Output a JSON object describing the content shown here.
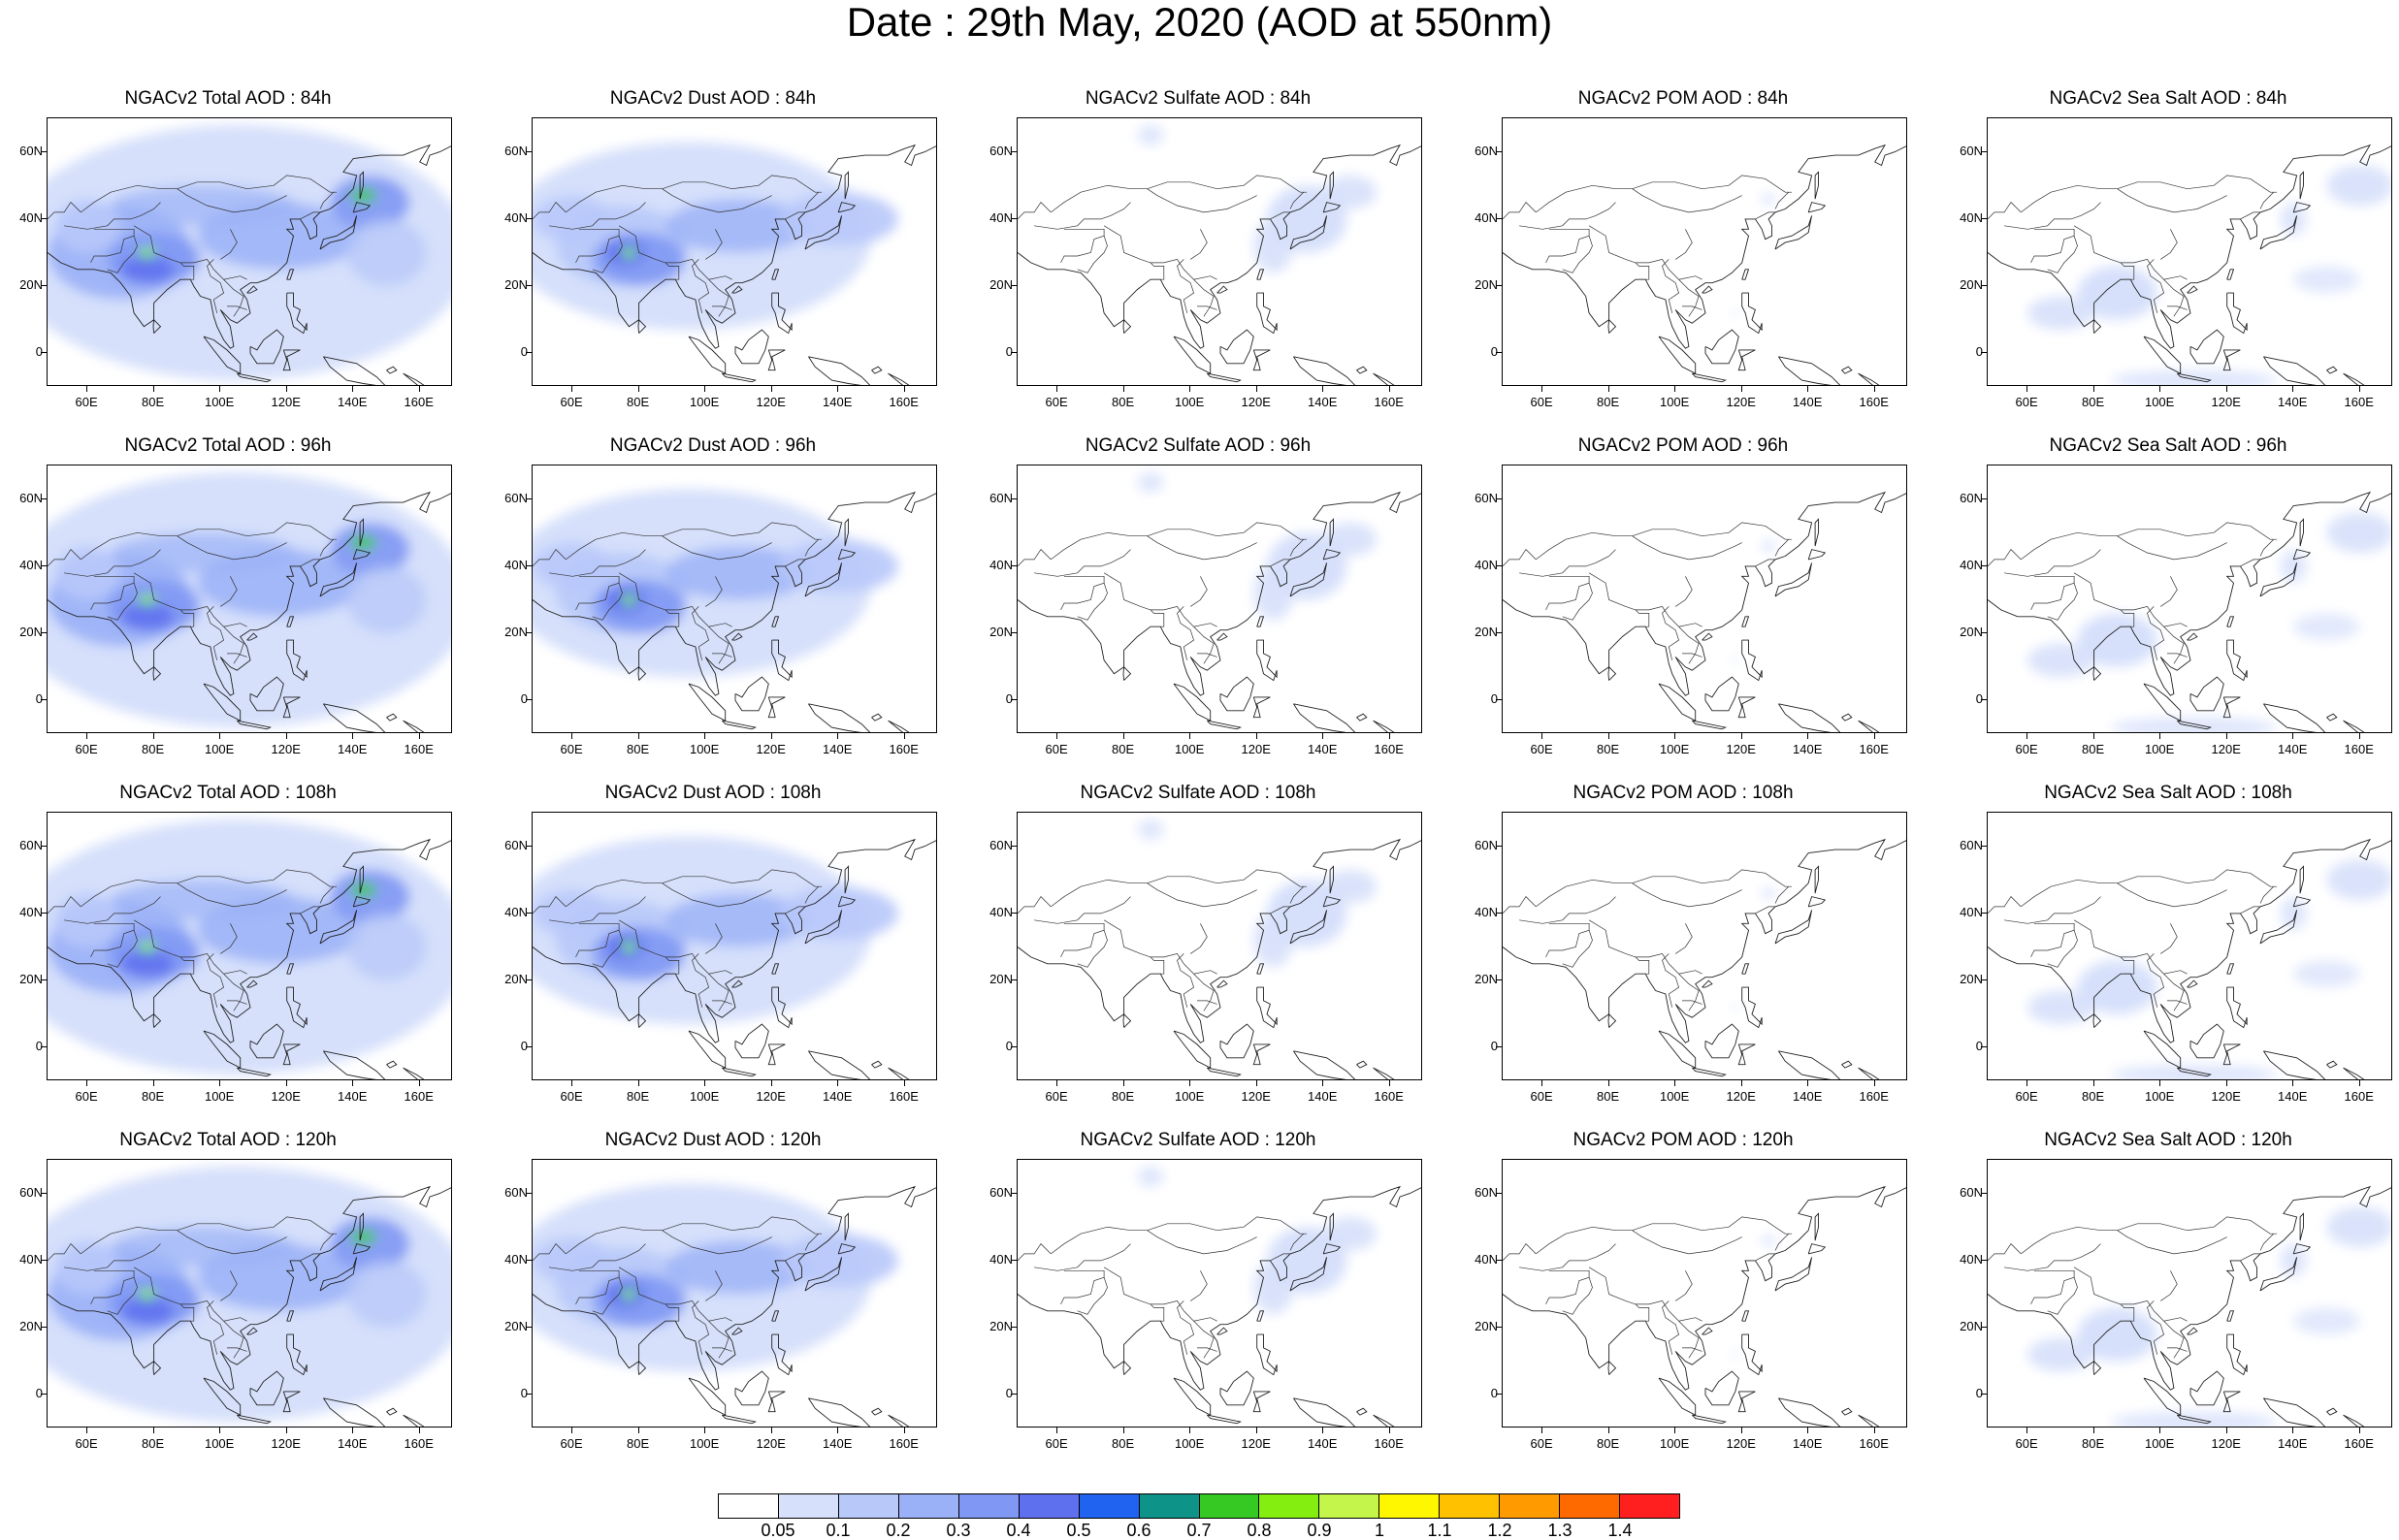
{
  "title": "Date : 29th May, 2020 (AOD at 550nm)",
  "axes": {
    "lat_labels": [
      "60N",
      "40N",
      "20N",
      "0"
    ],
    "lat_values": [
      60,
      40,
      20,
      0
    ],
    "lon_labels": [
      "60E",
      "80E",
      "100E",
      "120E",
      "140E",
      "160E"
    ],
    "lon_values": [
      60,
      80,
      100,
      120,
      140,
      160
    ],
    "lon_range": [
      48,
      170
    ],
    "lat_range": [
      -10,
      70
    ]
  },
  "rows": [
    {
      "panels": [
        {
          "title": "NGACv2 Total AOD : 84h",
          "species": "total"
        },
        {
          "title": "NGACv2 Dust AOD : 84h",
          "species": "dust"
        },
        {
          "title": "NGACv2 Sulfate AOD : 84h",
          "species": "sulfate"
        },
        {
          "title": "NGACv2 POM AOD : 84h",
          "species": "pom"
        },
        {
          "title": "NGACv2 Sea Salt AOD : 84h",
          "species": "seasalt"
        }
      ]
    },
    {
      "panels": [
        {
          "title": "NGACv2 Total AOD : 96h",
          "species": "total"
        },
        {
          "title": "NGACv2 Dust AOD : 96h",
          "species": "dust"
        },
        {
          "title": "NGACv2 Sulfate AOD : 96h",
          "species": "sulfate"
        },
        {
          "title": "NGACv2 POM AOD : 96h",
          "species": "pom"
        },
        {
          "title": "NGACv2 Sea Salt AOD : 96h",
          "species": "seasalt"
        }
      ]
    },
    {
      "panels": [
        {
          "title": "NGACv2 Total AOD : 108h",
          "species": "total"
        },
        {
          "title": "NGACv2 Dust AOD : 108h",
          "species": "dust"
        },
        {
          "title": "NGACv2 Sulfate AOD : 108h",
          "species": "sulfate"
        },
        {
          "title": "NGACv2 POM AOD : 108h",
          "species": "pom"
        },
        {
          "title": "NGACv2 Sea Salt AOD : 108h",
          "species": "seasalt"
        }
      ]
    },
    {
      "panels": [
        {
          "title": "NGACv2 Total AOD : 120h",
          "species": "total"
        },
        {
          "title": "NGACv2 Dust AOD : 120h",
          "species": "dust"
        },
        {
          "title": "NGACv2 Sulfate AOD : 120h",
          "species": "sulfate"
        },
        {
          "title": "NGACv2 POM AOD : 120h",
          "species": "pom"
        },
        {
          "title": "NGACv2 Sea Salt  AOD : 120h",
          "species": "seasalt"
        }
      ]
    }
  ],
  "colorbar": {
    "labels": [
      "0.05",
      "0.1",
      "0.2",
      "0.3",
      "0.4",
      "0.5",
      "0.6",
      "0.7",
      "0.8",
      "0.9",
      "1",
      "1.1",
      "1.2",
      "1.3",
      "1.4"
    ],
    "colors": [
      "#ffffff",
      "#d6e0fb",
      "#b8c8f9",
      "#9ab0f7",
      "#8098f3",
      "#5f70ee",
      "#1f63f0",
      "#0e9388",
      "#36c924",
      "#84ee10",
      "#c3f54a",
      "#fff700",
      "#ffc100",
      "#ff9b00",
      "#ff6a00",
      "#ff1f1f"
    ]
  }
}
